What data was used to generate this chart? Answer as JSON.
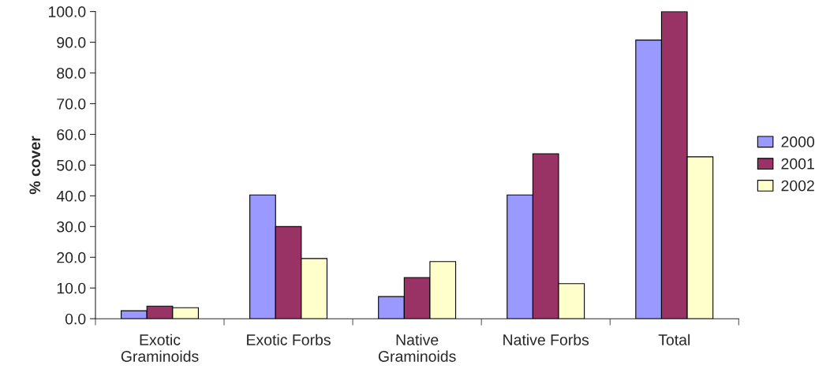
{
  "chart_data": {
    "type": "bar",
    "ylabel": "% cover",
    "categories": [
      "Exotic\nGraminoids",
      "Exotic Forbs",
      "Native\nGraminoids",
      "Native Forbs",
      "Total"
    ],
    "series": [
      {
        "name": "2000",
        "color": "#9999ff",
        "values": [
          2.6,
          40.3,
          7.2,
          40.3,
          90.7
        ]
      },
      {
        "name": "2001",
        "color": "#993366",
        "values": [
          4.1,
          30.0,
          13.4,
          53.7,
          100.0
        ]
      },
      {
        "name": "2002",
        "color": "#ffffcc",
        "values": [
          3.6,
          19.6,
          18.6,
          11.4,
          52.7
        ]
      }
    ],
    "ylim": [
      0,
      100
    ],
    "yticks": [
      {
        "value": 0,
        "label": "0.0"
      },
      {
        "value": 10,
        "label": "10.0"
      },
      {
        "value": 20,
        "label": "20.0"
      },
      {
        "value": 30,
        "label": "30.0"
      },
      {
        "value": 40,
        "label": "40.0"
      },
      {
        "value": 50,
        "label": "50.0"
      },
      {
        "value": 60,
        "label": "60.0"
      },
      {
        "value": 70,
        "label": "70.0"
      },
      {
        "value": 80,
        "label": "80.0"
      },
      {
        "value": 90,
        "label": "90.0"
      },
      {
        "value": 100,
        "label": "100.0"
      }
    ],
    "grid": false,
    "legend": "right"
  }
}
